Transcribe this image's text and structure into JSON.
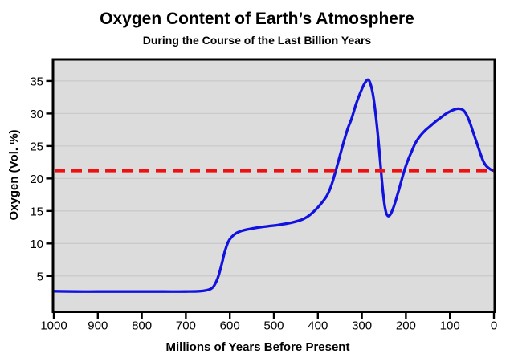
{
  "chart_data": {
    "type": "line",
    "title": "Oxygen Content of Earth’s Atmosphere",
    "subtitle": "During the Course of the Last Billion Years",
    "xlabel": "Millions of Years Before Present",
    "ylabel": "Oxygen (Vol. %)",
    "x_axis": {
      "min": 1000,
      "max": 0,
      "reversed": true,
      "ticks": [
        1000,
        900,
        800,
        700,
        600,
        500,
        400,
        300,
        200,
        100,
        0
      ]
    },
    "y_axis": {
      "min": -0.4,
      "max": 38.2,
      "ticks": [
        5,
        10,
        15,
        20,
        25,
        30,
        35
      ]
    },
    "grid": "horizontal",
    "colors": {
      "plot_background": "#dcdcdc",
      "gridline": "#cacaca",
      "border": "#000000",
      "series": "#1212e0",
      "reference": "#ee1111",
      "text": "#000000"
    },
    "series": [
      {
        "name": "oxygen-content",
        "style": "solid",
        "color": "#1212e0",
        "points": [
          [
            1000,
            2.65
          ],
          [
            950,
            2.6
          ],
          [
            900,
            2.6
          ],
          [
            850,
            2.6
          ],
          [
            800,
            2.6
          ],
          [
            750,
            2.6
          ],
          [
            700,
            2.6
          ],
          [
            670,
            2.65
          ],
          [
            650,
            2.85
          ],
          [
            638,
            3.3
          ],
          [
            628,
            4.6
          ],
          [
            620,
            6.4
          ],
          [
            612,
            8.6
          ],
          [
            604,
            10.2
          ],
          [
            596,
            11.0
          ],
          [
            585,
            11.6
          ],
          [
            570,
            12.0
          ],
          [
            550,
            12.3
          ],
          [
            520,
            12.6
          ],
          [
            490,
            12.85
          ],
          [
            460,
            13.2
          ],
          [
            435,
            13.7
          ],
          [
            420,
            14.3
          ],
          [
            405,
            15.2
          ],
          [
            393,
            16.1
          ],
          [
            380,
            17.3
          ],
          [
            370,
            18.8
          ],
          [
            361,
            20.8
          ],
          [
            352,
            23.0
          ],
          [
            343,
            25.2
          ],
          [
            333,
            27.5
          ],
          [
            323,
            29.3
          ],
          [
            313,
            31.5
          ],
          [
            303,
            33.3
          ],
          [
            294,
            34.6
          ],
          [
            286,
            35.2
          ],
          [
            280,
            34.4
          ],
          [
            274,
            32.6
          ],
          [
            268,
            29.5
          ],
          [
            262,
            25.5
          ],
          [
            256,
            20.8
          ],
          [
            251,
            17.2
          ],
          [
            246,
            15.0
          ],
          [
            241,
            14.25
          ],
          [
            235,
            14.5
          ],
          [
            228,
            15.6
          ],
          [
            220,
            17.3
          ],
          [
            212,
            19.2
          ],
          [
            205,
            20.9
          ],
          [
            197,
            22.5
          ],
          [
            188,
            24.0
          ],
          [
            178,
            25.5
          ],
          [
            168,
            26.5
          ],
          [
            156,
            27.4
          ],
          [
            144,
            28.1
          ],
          [
            132,
            28.8
          ],
          [
            120,
            29.4
          ],
          [
            108,
            30.0
          ],
          [
            97,
            30.4
          ],
          [
            86,
            30.7
          ],
          [
            76,
            30.7
          ],
          [
            68,
            30.4
          ],
          [
            60,
            29.5
          ],
          [
            53,
            28.3
          ],
          [
            47,
            27.1
          ],
          [
            41,
            25.9
          ],
          [
            35,
            24.7
          ],
          [
            29,
            23.5
          ],
          [
            23,
            22.5
          ],
          [
            17,
            21.9
          ],
          [
            10,
            21.5
          ],
          [
            5,
            21.3
          ],
          [
            0,
            21.2
          ]
        ]
      }
    ],
    "reference_line": {
      "name": "current-oxygen-level",
      "value": 21.2,
      "style": "dashed",
      "color": "#ee1111"
    },
    "legend": "none"
  }
}
